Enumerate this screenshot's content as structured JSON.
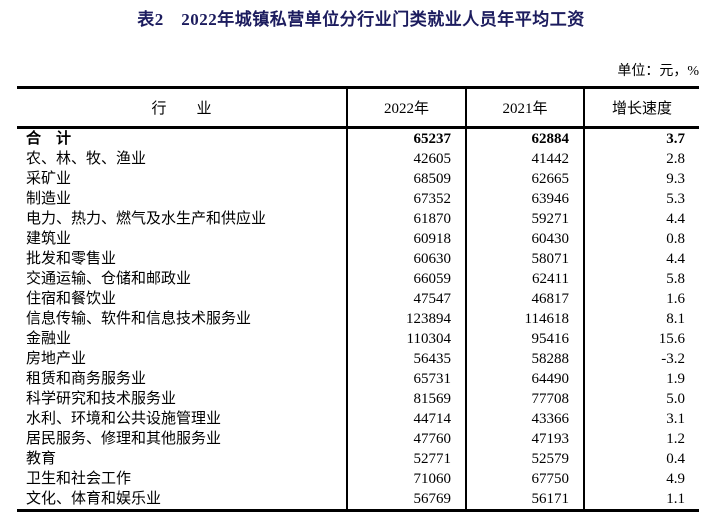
{
  "title": "表2　2022年城镇私营单位分行业门类就业人员年平均工资",
  "unit_note": "单位：元，%",
  "colors": {
    "title_text": "#1c1c5e",
    "body_text": "#000000",
    "table_border": "#000000",
    "background": "#ffffff"
  },
  "table": {
    "headers": [
      "行　　业",
      "2022年",
      "2021年",
      "增长速度"
    ],
    "rows": [
      {
        "industry": "合　计",
        "y2022": "65237",
        "y2021": "62884",
        "growth": "3.7",
        "bold": true
      },
      {
        "industry": "农、林、牧、渔业",
        "y2022": "42605",
        "y2021": "41442",
        "growth": "2.8",
        "bold": false
      },
      {
        "industry": "采矿业",
        "y2022": "68509",
        "y2021": "62665",
        "growth": "9.3",
        "bold": false
      },
      {
        "industry": "制造业",
        "y2022": "67352",
        "y2021": "63946",
        "growth": "5.3",
        "bold": false
      },
      {
        "industry": "电力、热力、燃气及水生产和供应业",
        "y2022": "61870",
        "y2021": "59271",
        "growth": "4.4",
        "bold": false
      },
      {
        "industry": "建筑业",
        "y2022": "60918",
        "y2021": "60430",
        "growth": "0.8",
        "bold": false
      },
      {
        "industry": "批发和零售业",
        "y2022": "60630",
        "y2021": "58071",
        "growth": "4.4",
        "bold": false
      },
      {
        "industry": "交通运输、仓储和邮政业",
        "y2022": "66059",
        "y2021": "62411",
        "growth": "5.8",
        "bold": false
      },
      {
        "industry": "住宿和餐饮业",
        "y2022": "47547",
        "y2021": "46817",
        "growth": "1.6",
        "bold": false
      },
      {
        "industry": "信息传输、软件和信息技术服务业",
        "y2022": "123894",
        "y2021": "114618",
        "growth": "8.1",
        "bold": false
      },
      {
        "industry": "金融业",
        "y2022": "110304",
        "y2021": "95416",
        "growth": "15.6",
        "bold": false
      },
      {
        "industry": "房地产业",
        "y2022": "56435",
        "y2021": "58288",
        "growth": "-3.2",
        "bold": false
      },
      {
        "industry": "租赁和商务服务业",
        "y2022": "65731",
        "y2021": "64490",
        "growth": "1.9",
        "bold": false
      },
      {
        "industry": "科学研究和技术服务业",
        "y2022": "81569",
        "y2021": "77708",
        "growth": "5.0",
        "bold": false
      },
      {
        "industry": "水利、环境和公共设施管理业",
        "y2022": "44714",
        "y2021": "43366",
        "growth": "3.1",
        "bold": false
      },
      {
        "industry": "居民服务、修理和其他服务业",
        "y2022": "47760",
        "y2021": "47193",
        "growth": "1.2",
        "bold": false
      },
      {
        "industry": "教育",
        "y2022": "52771",
        "y2021": "52579",
        "growth": "0.4",
        "bold": false
      },
      {
        "industry": "卫生和社会工作",
        "y2022": "71060",
        "y2021": "67750",
        "growth": "4.9",
        "bold": false
      },
      {
        "industry": "文化、体育和娱乐业",
        "y2022": "56769",
        "y2021": "56171",
        "growth": "1.1",
        "bold": false
      }
    ]
  }
}
